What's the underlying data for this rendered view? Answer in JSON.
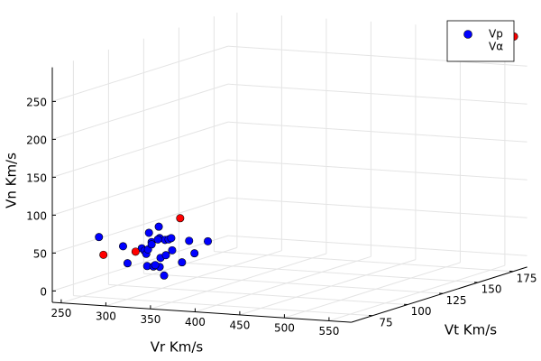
{
  "chart_data": {
    "type": "scatter3d",
    "xlabel": "Vr Km/s",
    "ylabel": "Vt Km/s",
    "zlabel": "Vn Km/s",
    "xlim": [
      240,
      575
    ],
    "ylim": [
      60,
      185
    ],
    "zlim": [
      -15,
      295
    ],
    "xticks": [
      250,
      300,
      350,
      400,
      450,
      500,
      550
    ],
    "yticks": [
      75,
      100,
      125,
      150,
      175
    ],
    "zticks": [
      0,
      50,
      100,
      150,
      200,
      250
    ],
    "grid": true,
    "legend": "top-right",
    "series": [
      {
        "name": "Vp",
        "color": "#0000ff",
        "x": [
          245,
          272,
          277,
          293,
          296,
          298,
          300,
          301,
          304,
          304,
          312,
          313,
          314,
          299,
          306,
          313,
          318,
          319,
          320,
          323,
          326,
          327,
          338,
          346,
          352,
          367,
          311,
          308
        ],
        "y": [
          90,
          90,
          90,
          90,
          90,
          90,
          90,
          90,
          90,
          90,
          90,
          90,
          90,
          90,
          90,
          90,
          90,
          90,
          90,
          90,
          90,
          90,
          90,
          90,
          90,
          90,
          90,
          90
        ],
        "z": [
          54,
          44,
          22,
          43,
          40,
          36,
          42,
          64,
          52,
          49,
          73,
          58,
          32,
          20,
          20,
          20,
          9,
          56,
          36,
          57,
          59,
          43,
          28,
          57,
          41,
          58,
          56,
          22
        ]
      },
      {
        "name": "Vα",
        "color": "#ff0000",
        "x": [
          250,
          286,
          336,
          565
        ],
        "y": [
          90,
          90,
          90,
          182
        ],
        "z": [
          31,
          38,
          86,
          290
        ]
      }
    ]
  }
}
